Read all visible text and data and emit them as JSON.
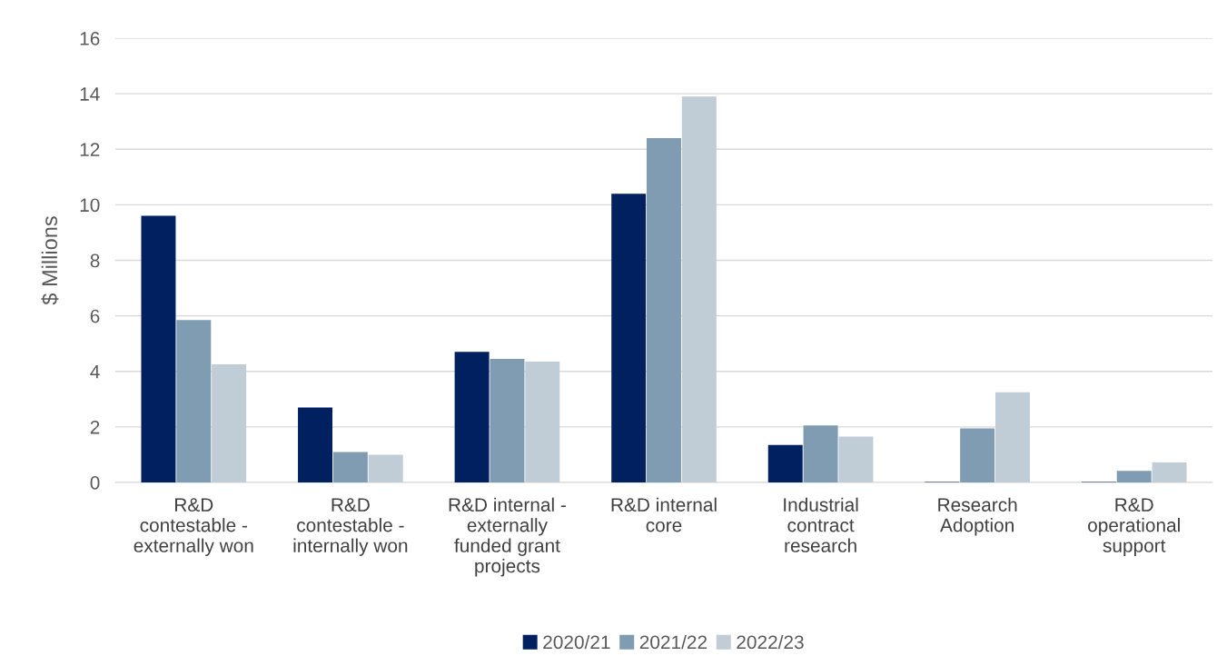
{
  "chart_data": {
    "type": "bar",
    "ylabel": "$ Millions",
    "categories": [
      "R&D\ncontestable -\nexternally won",
      "R&D\ncontestable -\ninternally won",
      "R&D internal -\nexternally\nfunded grant\nprojects",
      "R&D internal\ncore",
      "Industrial\ncontract\nresearch",
      "Research\nAdoption",
      "R&D\noperational\nsupport"
    ],
    "series": [
      {
        "name": "2020/21",
        "color": "#002060",
        "values": [
          9.6,
          2.7,
          4.7,
          10.4,
          1.35,
          0.02,
          0.02
        ]
      },
      {
        "name": "2021/22",
        "color": "#7f9cb2",
        "values": [
          5.85,
          1.1,
          4.45,
          12.4,
          2.05,
          1.95,
          0.42
        ]
      },
      {
        "name": "2022/23",
        "color": "#c0ccd6",
        "values": [
          4.25,
          1.0,
          4.35,
          13.9,
          1.65,
          3.25,
          0.72
        ]
      }
    ],
    "ylim": [
      0,
      16
    ],
    "yticks": [
      0,
      2,
      4,
      6,
      8,
      10,
      12,
      14,
      16
    ],
    "grid": "y",
    "legend": "bottom"
  }
}
